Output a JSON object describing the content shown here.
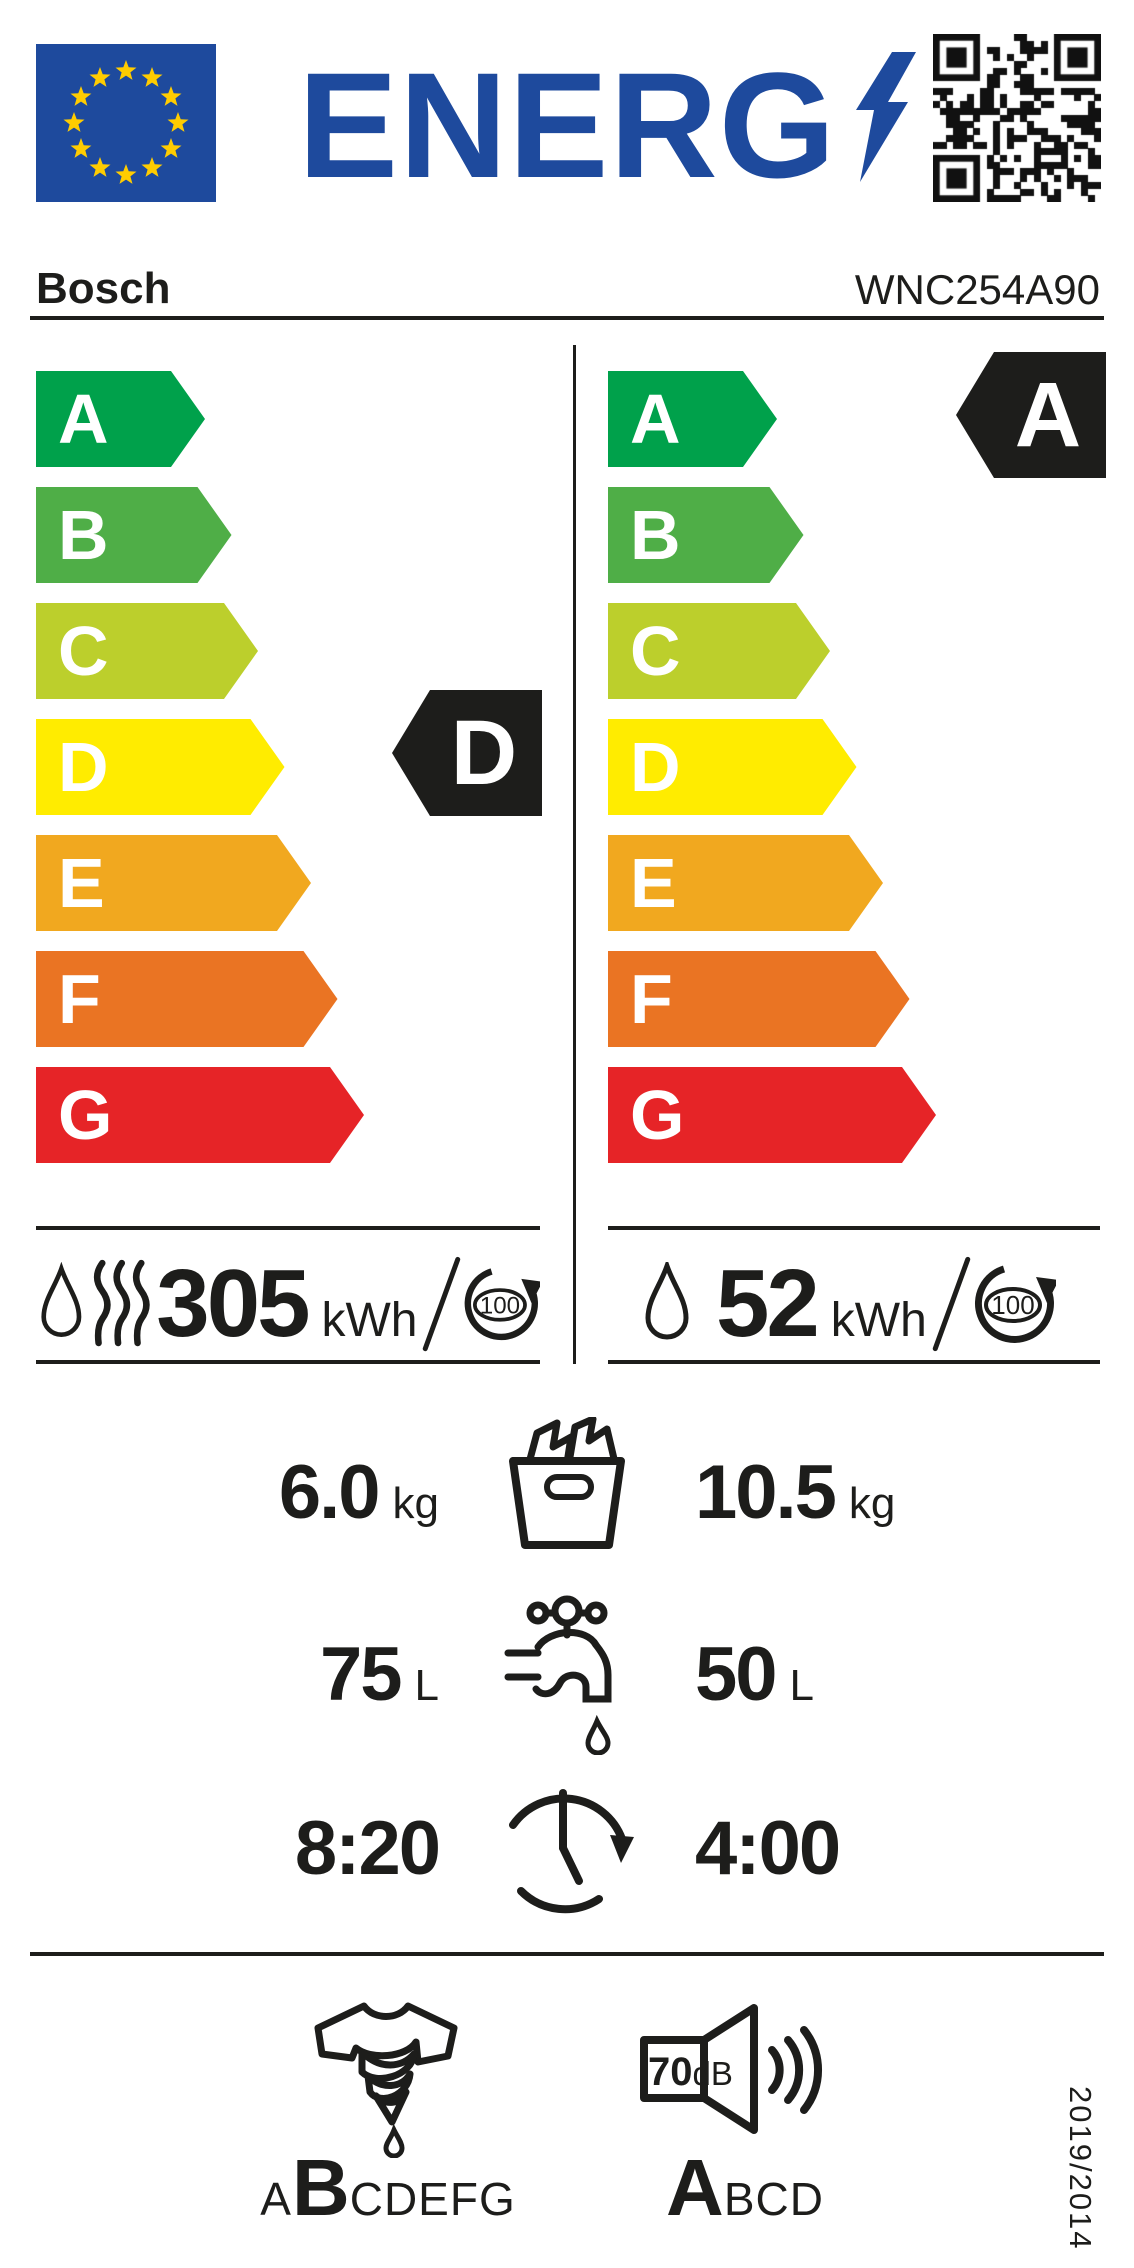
{
  "colors": {
    "eu_blue": "#1e4a9d",
    "star_yellow": "#ffcc00",
    "ink": "#1d1d1b",
    "rating_black": "#1d1d1b"
  },
  "header": {
    "logo_text": "ENERG",
    "icons": [
      "eu-flag",
      "lightning-bolt-icon",
      "qr-code"
    ]
  },
  "supplier": {
    "brand": "Bosch",
    "model": "WNC254A90"
  },
  "scale": {
    "classes": [
      {
        "letter": "A",
        "color": "#00a14b"
      },
      {
        "letter": "B",
        "color": "#4fae47"
      },
      {
        "letter": "C",
        "color": "#bccf2c"
      },
      {
        "letter": "D",
        "color": "#ffec00"
      },
      {
        "letter": "E",
        "color": "#f1a81f"
      },
      {
        "letter": "F",
        "color": "#ea7423"
      },
      {
        "letter": "G",
        "color": "#e62427"
      }
    ],
    "left_rating": "D",
    "right_rating": "A"
  },
  "energy": {
    "left": {
      "value": "305",
      "unit": "kWh",
      "cycles": "100",
      "icons": [
        "water-drop-icon",
        "heat-waves-icon",
        "per-100-cycles-icon"
      ]
    },
    "right": {
      "value": "52",
      "unit": "kWh",
      "cycles": "100",
      "icons": [
        "water-drop-icon",
        "per-100-cycles-icon"
      ]
    }
  },
  "capacity": {
    "left_value": "6.0",
    "left_unit": "kg",
    "right_value": "10.5",
    "right_unit": "kg",
    "icon": "laundry-basket-icon"
  },
  "water": {
    "left_value": "75",
    "left_unit": "L",
    "right_value": "50",
    "right_unit": "L",
    "icon": "water-tap-icon"
  },
  "duration": {
    "left_value": "8:20",
    "right_value": "4:00",
    "icon": "clock-icon"
  },
  "spin_class": {
    "prefix": "A",
    "rated": "B",
    "suffix": "CDEFG",
    "icon": "spin-dry-icon"
  },
  "noise": {
    "value": "70",
    "unit": "dB",
    "rated": "A",
    "suffix": "BCD",
    "icons": [
      "speaker-icon",
      "sound-waves-icon"
    ]
  },
  "regulation": "2019/2014"
}
